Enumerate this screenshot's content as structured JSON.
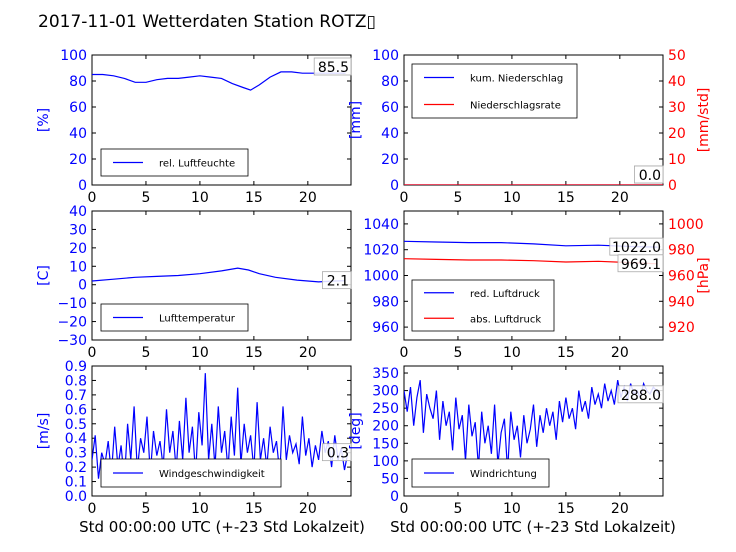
{
  "figure": {
    "title": "2017-11-01 Wetterdaten Station ROTZ▯",
    "xlabel": "Std 00:00:00 UTC (+-23 Std Lokalzeit)"
  },
  "chart_data": [
    {
      "id": "humidity",
      "type": "line",
      "xlim": [
        0,
        24
      ],
      "ylim": [
        0,
        100
      ],
      "xticks": [
        "0",
        "5",
        "10",
        "15",
        "20"
      ],
      "yticks": [
        "0",
        "20",
        "40",
        "60",
        "80",
        "100"
      ],
      "ylabel": "[%]",
      "annotation": "85.5",
      "legend": "lower-left",
      "series": [
        {
          "name": "rel. Luftfeuchte",
          "color": "#0000ff",
          "x": [
            0,
            1,
            2,
            3,
            4,
            5,
            6,
            7,
            8,
            9,
            10,
            11,
            12,
            13,
            14,
            14.7,
            15.5,
            16.5,
            17.5,
            18.5,
            19.5,
            20.5,
            21.5,
            22.5,
            23.5
          ],
          "y": [
            85,
            85,
            84,
            82,
            79,
            79,
            81,
            82,
            82,
            83,
            84,
            83,
            82,
            78,
            75,
            73,
            77,
            83,
            87,
            87,
            86,
            86,
            86,
            86,
            86
          ]
        }
      ]
    },
    {
      "id": "precip",
      "type": "line",
      "xlim": [
        0,
        24
      ],
      "ylim": [
        0,
        100
      ],
      "xticks": [
        "0",
        "5",
        "10",
        "15",
        "20"
      ],
      "yticks": [
        "0",
        "20",
        "40",
        "60",
        "80",
        "100"
      ],
      "ylabel": "[mm]",
      "y2lim": [
        0,
        50
      ],
      "y2ticks": [
        "0",
        "10",
        "20",
        "30",
        "40",
        "50"
      ],
      "y2label": "[mm/std]",
      "annotation": "0.0",
      "annotation2": "0.0",
      "legend": "upper-left",
      "series": [
        {
          "name": "kum. Niederschlag",
          "color": "#0000ff",
          "axis": "left",
          "x": [
            0,
            24
          ],
          "y": [
            0,
            0
          ]
        },
        {
          "name": "Niederschlagsrate",
          "color": "#ff0000",
          "axis": "right",
          "x": [
            0,
            24
          ],
          "y": [
            0,
            0
          ]
        }
      ]
    },
    {
      "id": "temperature",
      "type": "line",
      "xlim": [
        0,
        24
      ],
      "ylim": [
        -30,
        40
      ],
      "xticks": [
        "0",
        "5",
        "10",
        "15",
        "20"
      ],
      "yticks": [
        "−30",
        "−20",
        "−10",
        "0",
        "10",
        "20",
        "30",
        "40"
      ],
      "ylabel": "[C]",
      "annotation": "2.1",
      "legend": "lower-left",
      "series": [
        {
          "name": "Lufttemperatur",
          "color": "#0000ff",
          "x": [
            0,
            2,
            4,
            6,
            8,
            10,
            12,
            13.5,
            14.5,
            15.5,
            17,
            19,
            21,
            22.5,
            23.5
          ],
          "y": [
            2,
            3,
            4,
            4.5,
            5,
            6,
            7.5,
            9,
            8,
            6,
            4,
            2.5,
            1.5,
            2,
            2.2
          ]
        }
      ]
    },
    {
      "id": "pressure",
      "type": "line",
      "xlim": [
        0,
        24
      ],
      "ylim": [
        950,
        1050
      ],
      "xticks": [
        "0",
        "5",
        "10",
        "15",
        "20"
      ],
      "yticks": [
        "960",
        "980",
        "1000",
        "1020",
        "1040"
      ],
      "y2lim": [
        910,
        1010
      ],
      "y2ticks": [
        "920",
        "940",
        "960",
        "980",
        "1000"
      ],
      "y2label": "[hPa]",
      "annotation": "1022.0",
      "annotation2": "969.1",
      "legend": "lower-left",
      "series": [
        {
          "name": "red. Luftdruck",
          "color": "#0000ff",
          "axis": "left",
          "x": [
            0,
            3,
            6,
            9,
            12,
            15,
            18,
            21,
            23.5
          ],
          "y": [
            1026.5,
            1026,
            1025.5,
            1025.5,
            1024.5,
            1023,
            1023.5,
            1022.5,
            1022
          ]
        },
        {
          "name": "abs. Luftdruck",
          "color": "#ff0000",
          "axis": "right",
          "x": [
            0,
            3,
            6,
            9,
            12,
            15,
            18,
            21,
            23.5
          ],
          "y": [
            973,
            972.5,
            972,
            972,
            971.5,
            970.5,
            971,
            970,
            969.1
          ]
        }
      ]
    },
    {
      "id": "windspeed",
      "type": "line",
      "xlim": [
        0,
        24
      ],
      "ylim": [
        0,
        0.9
      ],
      "xticks": [
        "0",
        "5",
        "10",
        "15",
        "20"
      ],
      "yticks": [
        "0.0",
        "0.1",
        "0.2",
        "0.3",
        "0.4",
        "0.5",
        "0.6",
        "0.7",
        "0.8",
        "0.9"
      ],
      "ylabel": "[m/s]",
      "annotation": "0.3",
      "legend": "lower-left",
      "series": [
        {
          "name": "Windgeschwindigkeit",
          "color": "#0000ff",
          "x": [
            0,
            0.3,
            0.6,
            0.9,
            1.2,
            1.5,
            1.8,
            2.1,
            2.4,
            2.7,
            3,
            3.3,
            3.6,
            3.9,
            4.2,
            4.5,
            4.8,
            5.1,
            5.4,
            5.7,
            6,
            6.3,
            6.6,
            6.9,
            7.2,
            7.5,
            7.8,
            8.1,
            8.4,
            8.7,
            9,
            9.3,
            9.6,
            9.9,
            10.2,
            10.5,
            10.8,
            11.1,
            11.4,
            11.7,
            12,
            12.3,
            12.6,
            12.9,
            13.2,
            13.5,
            13.8,
            14.1,
            14.4,
            14.7,
            15,
            15.3,
            15.6,
            15.9,
            16.2,
            16.5,
            16.8,
            17.1,
            17.4,
            17.7,
            18,
            18.3,
            18.6,
            18.9,
            19.2,
            19.5,
            19.8,
            20.1,
            20.4,
            20.7,
            21,
            21.3,
            21.6,
            21.9,
            22.2,
            22.5,
            22.8,
            23.1,
            23.4,
            23.7
          ],
          "y": [
            0.25,
            0.42,
            0.12,
            0.3,
            0.22,
            0.38,
            0.15,
            0.48,
            0.2,
            0.35,
            0.1,
            0.5,
            0.25,
            0.62,
            0.18,
            0.4,
            0.3,
            0.55,
            0.15,
            0.45,
            0.28,
            0.38,
            0.2,
            0.6,
            0.3,
            0.45,
            0.18,
            0.52,
            0.25,
            0.68,
            0.3,
            0.48,
            0.15,
            0.58,
            0.35,
            0.85,
            0.25,
            0.5,
            0.2,
            0.62,
            0.3,
            0.45,
            0.18,
            0.55,
            0.28,
            0.75,
            0.22,
            0.5,
            0.3,
            0.42,
            0.18,
            0.65,
            0.25,
            0.4,
            0.2,
            0.48,
            0.3,
            0.38,
            0.15,
            0.62,
            0.25,
            0.42,
            0.3,
            0.36,
            0.22,
            0.55,
            0.28,
            0.4,
            0.2,
            0.35,
            0.25,
            0.45,
            0.3,
            0.38,
            0.2,
            0.42,
            0.25,
            0.33,
            0.18,
            0.3
          ]
        }
      ]
    },
    {
      "id": "winddir",
      "type": "line",
      "xlim": [
        0,
        24
      ],
      "ylim": [
        0,
        370
      ],
      "xticks": [
        "0",
        "5",
        "10",
        "15",
        "20"
      ],
      "yticks": [
        "0",
        "50",
        "100",
        "150",
        "200",
        "250",
        "300",
        "350"
      ],
      "ylabel": "[deg]",
      "annotation": "288.0",
      "legend": "lower-left",
      "series": [
        {
          "name": "Windrichtung",
          "color": "#0000ff",
          "x": [
            0,
            0.3,
            0.6,
            0.9,
            1.2,
            1.5,
            1.8,
            2.1,
            2.4,
            2.7,
            3,
            3.3,
            3.6,
            3.9,
            4.2,
            4.5,
            4.8,
            5.1,
            5.4,
            5.7,
            6,
            6.3,
            6.6,
            6.9,
            7.2,
            7.5,
            7.8,
            8.1,
            8.4,
            8.7,
            9,
            9.3,
            9.6,
            9.9,
            10.2,
            10.5,
            10.8,
            11.1,
            11.4,
            11.7,
            12,
            12.3,
            12.6,
            12.9,
            13.2,
            13.5,
            13.8,
            14.1,
            14.4,
            14.7,
            15,
            15.3,
            15.6,
            15.9,
            16.2,
            16.5,
            16.8,
            17.1,
            17.4,
            17.7,
            18,
            18.3,
            18.6,
            18.9,
            19.2,
            19.5,
            19.8,
            20.1,
            20.4,
            20.7,
            21,
            21.3,
            21.6,
            21.9,
            22.2,
            22.5,
            22.8,
            23.1,
            23.4,
            23.7
          ],
          "y": [
            300,
            240,
            310,
            200,
            280,
            330,
            180,
            290,
            250,
            220,
            300,
            160,
            270,
            200,
            240,
            130,
            280,
            190,
            230,
            100,
            260,
            170,
            210,
            80,
            240,
            150,
            200,
            120,
            260,
            90,
            180,
            220,
            70,
            240,
            160,
            200,
            110,
            230,
            150,
            190,
            260,
            140,
            230,
            180,
            250,
            200,
            240,
            160,
            270,
            210,
            280,
            220,
            250,
            190,
            300,
            240,
            270,
            220,
            310,
            260,
            290,
            250,
            320,
            270,
            300,
            260,
            330,
            280,
            310,
            270,
            320,
            290,
            300,
            280,
            320,
            300,
            290,
            310,
            300,
            288
          ]
        }
      ]
    }
  ]
}
